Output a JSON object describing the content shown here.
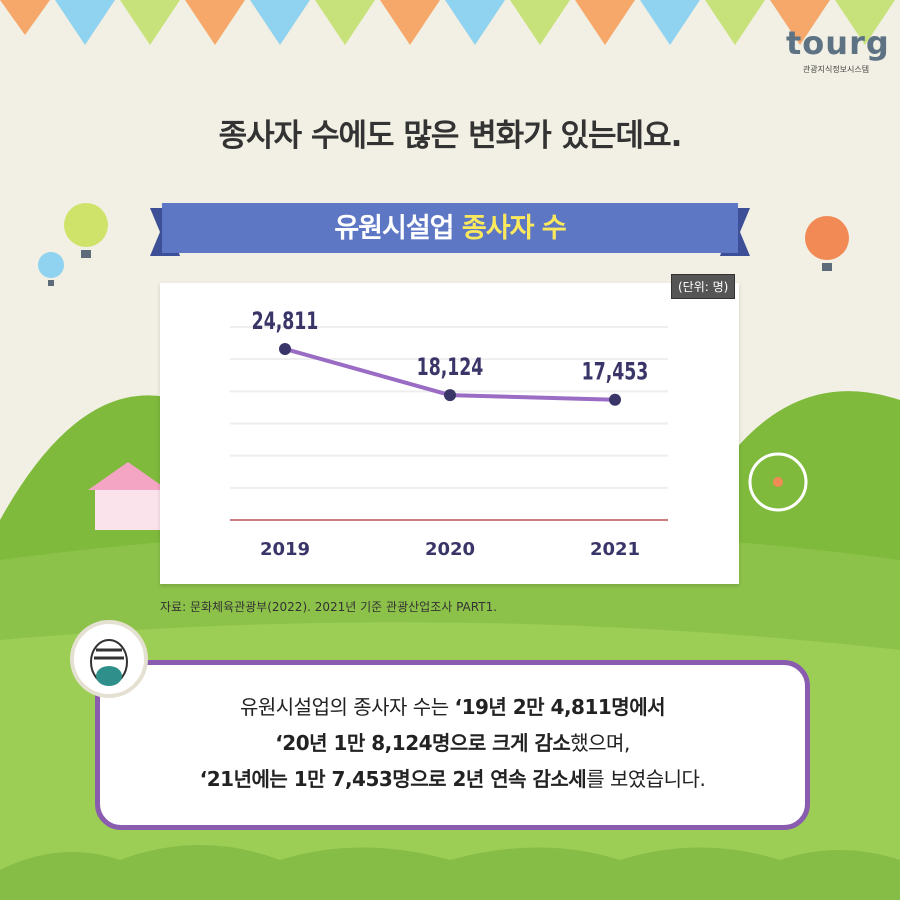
{
  "logo": {
    "word": "tourg",
    "subtitle": "관광지식정보시스템"
  },
  "headline": "종사자 수에도 많은 변화가 있는데요.",
  "ribbon": {
    "part1": "유원시설업 ",
    "part2": "종사자 수"
  },
  "unit_label": "(단위: 명)",
  "source": "자료: 문화체육관광부(2022). 2021년 기준 관광산업조사 PART1.",
  "colors": {
    "line": "#9a6cc4",
    "point": "#3a3568",
    "baseline": "#c0505a",
    "ribbon": "#5d77c4",
    "box_border": "#8a5cb0"
  },
  "chart_data": {
    "type": "line",
    "categories": [
      "2019",
      "2020",
      "2021"
    ],
    "values": [
      24811,
      18124,
      17453
    ],
    "data_labels": [
      "24,811",
      "18,124",
      "17,453"
    ],
    "ylim": [
      0,
      28000
    ],
    "grid": true
  },
  "summary": {
    "l1a": "유원시설업의 종사자 수는 ",
    "l1b": "‘19년 2만 4,811명에서",
    "l2a": "‘20년 1만 8,124명으로 크게 감소",
    "l2b": "했으며,",
    "l3a": "‘21년에는 1만 7,453명으로 2년 연속 감소세",
    "l3b": "를 보였습니다."
  }
}
